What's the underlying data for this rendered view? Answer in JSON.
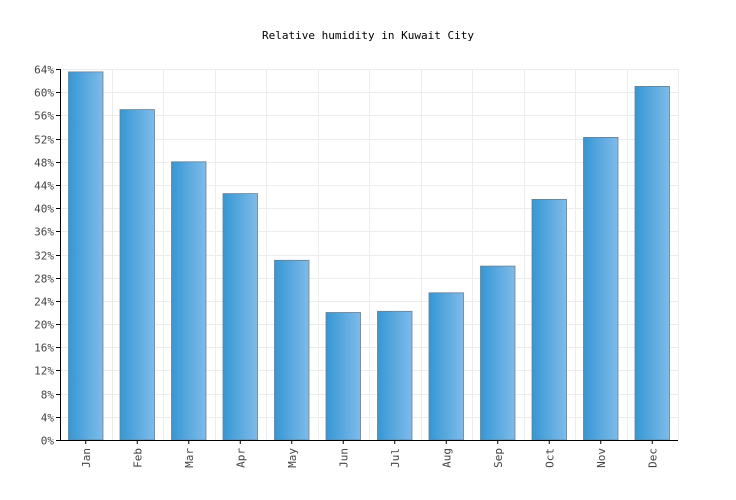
{
  "chart_data": {
    "type": "bar",
    "title": "Relative humidity in Kuwait City",
    "categories": [
      "Jan",
      "Feb",
      "Mar",
      "Apr",
      "May",
      "Jun",
      "Jul",
      "Aug",
      "Sep",
      "Oct",
      "Nov",
      "Dec"
    ],
    "values": [
      63.5,
      57,
      48,
      42.5,
      31,
      22,
      22.2,
      25.4,
      30,
      41.5,
      52.2,
      61
    ],
    "ylim": [
      0,
      64
    ],
    "ytick_step": 4,
    "y_unit": "%",
    "xlabel": "",
    "ylabel": "",
    "grid": true,
    "bar_color_light": "#7fbbea",
    "bar_color_dark": "#3597d4"
  }
}
